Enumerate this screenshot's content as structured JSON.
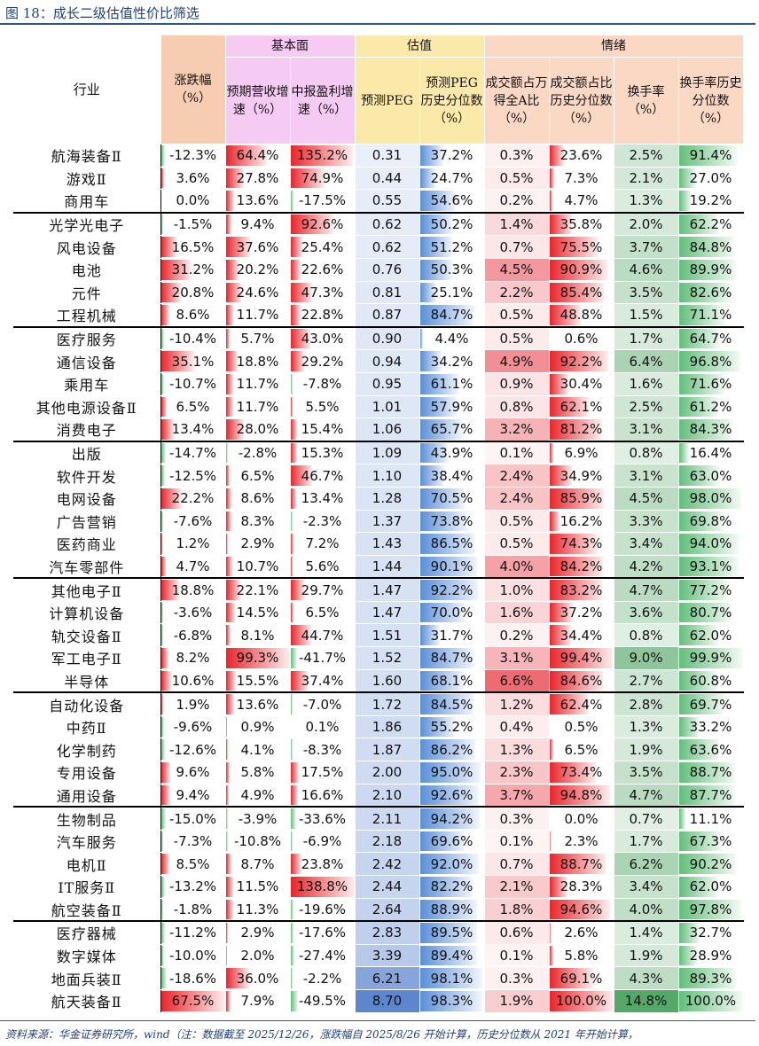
{
  "title": "图 18：成长二级估值性价比筛选",
  "header": {
    "industry": "行业",
    "change": "涨跌幅（%）",
    "groups": {
      "fundamental": "基本面",
      "valuation": "估值",
      "sentiment": "情绪"
    },
    "cols": [
      "预期营收增速（%）",
      "中报盈利增速（%）",
      "预测PEG",
      "预测PEG历史分位数（%）",
      "成交额占万得全A比（%）",
      "成交额占比历史分位数（%）",
      "换手率（%）",
      "换手率历史分位数（%）"
    ]
  },
  "separators_after": [
    2,
    7,
    12,
    18,
    23,
    28,
    33
  ],
  "rows": [
    [
      "航海装备Ⅱ",
      "-12.3%",
      "64.4%",
      "135.2%",
      "0.31",
      "37.2%",
      "0.3%",
      "23.6%",
      "2.5%",
      "91.4%"
    ],
    [
      "游戏Ⅱ",
      "3.6%",
      "27.8%",
      "74.9%",
      "0.44",
      "24.7%",
      "0.5%",
      "7.3%",
      "2.1%",
      "27.0%"
    ],
    [
      "商用车",
      "0.0%",
      "13.6%",
      "-17.5%",
      "0.55",
      "54.6%",
      "0.2%",
      "4.7%",
      "1.3%",
      "19.2%"
    ],
    [
      "光学光电子",
      "-1.5%",
      "9.4%",
      "92.6%",
      "0.62",
      "50.2%",
      "1.4%",
      "35.8%",
      "2.0%",
      "62.2%"
    ],
    [
      "风电设备",
      "16.5%",
      "37.6%",
      "25.4%",
      "0.62",
      "51.2%",
      "0.7%",
      "75.5%",
      "3.7%",
      "84.8%"
    ],
    [
      "电池",
      "31.2%",
      "20.2%",
      "22.6%",
      "0.76",
      "50.3%",
      "4.5%",
      "90.9%",
      "4.6%",
      "89.9%"
    ],
    [
      "元件",
      "20.8%",
      "24.6%",
      "47.3%",
      "0.81",
      "25.1%",
      "2.2%",
      "85.4%",
      "3.5%",
      "82.6%"
    ],
    [
      "工程机械",
      "8.6%",
      "11.7%",
      "22.8%",
      "0.87",
      "84.7%",
      "0.5%",
      "48.8%",
      "1.5%",
      "71.1%"
    ],
    [
      "医疗服务",
      "-10.4%",
      "5.7%",
      "43.0%",
      "0.90",
      "4.4%",
      "0.5%",
      "0.6%",
      "1.7%",
      "64.7%"
    ],
    [
      "通信设备",
      "35.1%",
      "18.8%",
      "29.2%",
      "0.94",
      "34.2%",
      "4.9%",
      "92.2%",
      "6.4%",
      "96.8%"
    ],
    [
      "乘用车",
      "-10.7%",
      "11.7%",
      "-7.8%",
      "0.95",
      "61.1%",
      "0.9%",
      "30.4%",
      "1.6%",
      "71.6%"
    ],
    [
      "其他电源设备Ⅱ",
      "6.5%",
      "11.7%",
      "5.5%",
      "1.01",
      "57.9%",
      "0.8%",
      "62.1%",
      "2.5%",
      "61.2%"
    ],
    [
      "消费电子",
      "13.4%",
      "28.0%",
      "15.4%",
      "1.06",
      "65.7%",
      "3.2%",
      "81.2%",
      "3.1%",
      "84.3%"
    ],
    [
      "出版",
      "-14.7%",
      "-2.8%",
      "15.3%",
      "1.09",
      "43.9%",
      "0.1%",
      "6.9%",
      "0.8%",
      "16.4%"
    ],
    [
      "软件开发",
      "-12.5%",
      "6.5%",
      "46.7%",
      "1.10",
      "38.4%",
      "2.4%",
      "34.9%",
      "3.1%",
      "63.0%"
    ],
    [
      "电网设备",
      "22.2%",
      "8.6%",
      "13.4%",
      "1.28",
      "70.5%",
      "2.4%",
      "85.9%",
      "4.5%",
      "98.0%"
    ],
    [
      "广告营销",
      "-7.6%",
      "8.3%",
      "-2.3%",
      "1.37",
      "73.8%",
      "0.5%",
      "16.2%",
      "3.3%",
      "69.8%"
    ],
    [
      "医药商业",
      "1.2%",
      "2.9%",
      "7.2%",
      "1.43",
      "86.5%",
      "0.5%",
      "74.3%",
      "3.4%",
      "94.0%"
    ],
    [
      "汽车零部件",
      "4.7%",
      "10.7%",
      "5.6%",
      "1.44",
      "90.1%",
      "4.0%",
      "84.2%",
      "4.2%",
      "93.1%"
    ],
    [
      "其他电子Ⅱ",
      "18.8%",
      "22.1%",
      "29.7%",
      "1.47",
      "92.2%",
      "1.0%",
      "83.2%",
      "4.7%",
      "77.2%"
    ],
    [
      "计算机设备",
      "-3.6%",
      "14.5%",
      "6.5%",
      "1.47",
      "70.0%",
      "1.6%",
      "37.2%",
      "3.6%",
      "80.7%"
    ],
    [
      "轨交设备Ⅱ",
      "-6.8%",
      "8.1%",
      "44.7%",
      "1.51",
      "31.7%",
      "0.2%",
      "34.4%",
      "0.8%",
      "62.0%"
    ],
    [
      "军工电子Ⅱ",
      "8.2%",
      "99.3%",
      "-41.7%",
      "1.52",
      "84.7%",
      "3.1%",
      "99.4%",
      "9.0%",
      "99.9%"
    ],
    [
      "半导体",
      "10.6%",
      "15.5%",
      "37.4%",
      "1.60",
      "68.1%",
      "6.6%",
      "84.6%",
      "2.7%",
      "60.8%"
    ],
    [
      "自动化设备",
      "1.9%",
      "13.6%",
      "-7.0%",
      "1.72",
      "84.5%",
      "1.2%",
      "62.4%",
      "2.8%",
      "69.7%"
    ],
    [
      "中药Ⅱ",
      "-9.6%",
      "0.9%",
      "0.1%",
      "1.86",
      "55.2%",
      "0.4%",
      "0.5%",
      "1.3%",
      "33.2%"
    ],
    [
      "化学制药",
      "-12.6%",
      "4.1%",
      "-8.3%",
      "1.87",
      "86.2%",
      "1.3%",
      "6.5%",
      "1.9%",
      "63.6%"
    ],
    [
      "专用设备",
      "9.6%",
      "5.8%",
      "17.5%",
      "2.00",
      "95.0%",
      "2.3%",
      "73.4%",
      "3.5%",
      "88.7%"
    ],
    [
      "通用设备",
      "9.4%",
      "4.9%",
      "16.6%",
      "2.10",
      "92.6%",
      "3.7%",
      "94.8%",
      "4.7%",
      "87.7%"
    ],
    [
      "生物制品",
      "-15.0%",
      "-3.9%",
      "-33.6%",
      "2.11",
      "94.2%",
      "0.3%",
      "0.0%",
      "0.7%",
      "11.1%"
    ],
    [
      "汽车服务",
      "-7.3%",
      "-10.8%",
      "-6.9%",
      "2.18",
      "69.6%",
      "0.1%",
      "2.3%",
      "1.7%",
      "67.3%"
    ],
    [
      "电机Ⅱ",
      "8.5%",
      "8.7%",
      "23.8%",
      "2.42",
      "92.0%",
      "0.7%",
      "88.7%",
      "6.2%",
      "90.2%"
    ],
    [
      "IT服务Ⅱ",
      "-13.2%",
      "11.5%",
      "138.8%",
      "2.44",
      "82.2%",
      "2.1%",
      "28.3%",
      "3.4%",
      "62.0%"
    ],
    [
      "航空装备Ⅱ",
      "-1.8%",
      "11.3%",
      "-19.6%",
      "2.64",
      "88.9%",
      "1.8%",
      "94.6%",
      "4.0%",
      "97.8%"
    ],
    [
      "医疗器械",
      "-11.2%",
      "2.9%",
      "-17.6%",
      "2.83",
      "89.5%",
      "0.6%",
      "2.6%",
      "1.4%",
      "32.7%"
    ],
    [
      "数字媒体",
      "-10.0%",
      "2.0%",
      "-27.4%",
      "3.39",
      "89.4%",
      "0.1%",
      "5.8%",
      "1.9%",
      "28.9%"
    ],
    [
      "地面兵装Ⅱ",
      "-18.6%",
      "36.0%",
      "-2.2%",
      "6.21",
      "98.1%",
      "0.3%",
      "69.1%",
      "4.3%",
      "89.3%"
    ],
    [
      "航天装备Ⅱ",
      "67.5%",
      "7.9%",
      "-49.5%",
      "8.70",
      "98.3%",
      "1.9%",
      "100.0%",
      "14.8%",
      "100.0%"
    ]
  ],
  "colors": {
    "red": "#e8262c",
    "green": "#63be7b",
    "blue": "#5b8fd6",
    "title": "#1f3f7a"
  },
  "source": "资料来源：华金证券研究所，wind（注：数据截至 2025/12/26，涨跌幅自 2025/8/26 开始计算，历史分位数从 2021 年开始计算，"
}
